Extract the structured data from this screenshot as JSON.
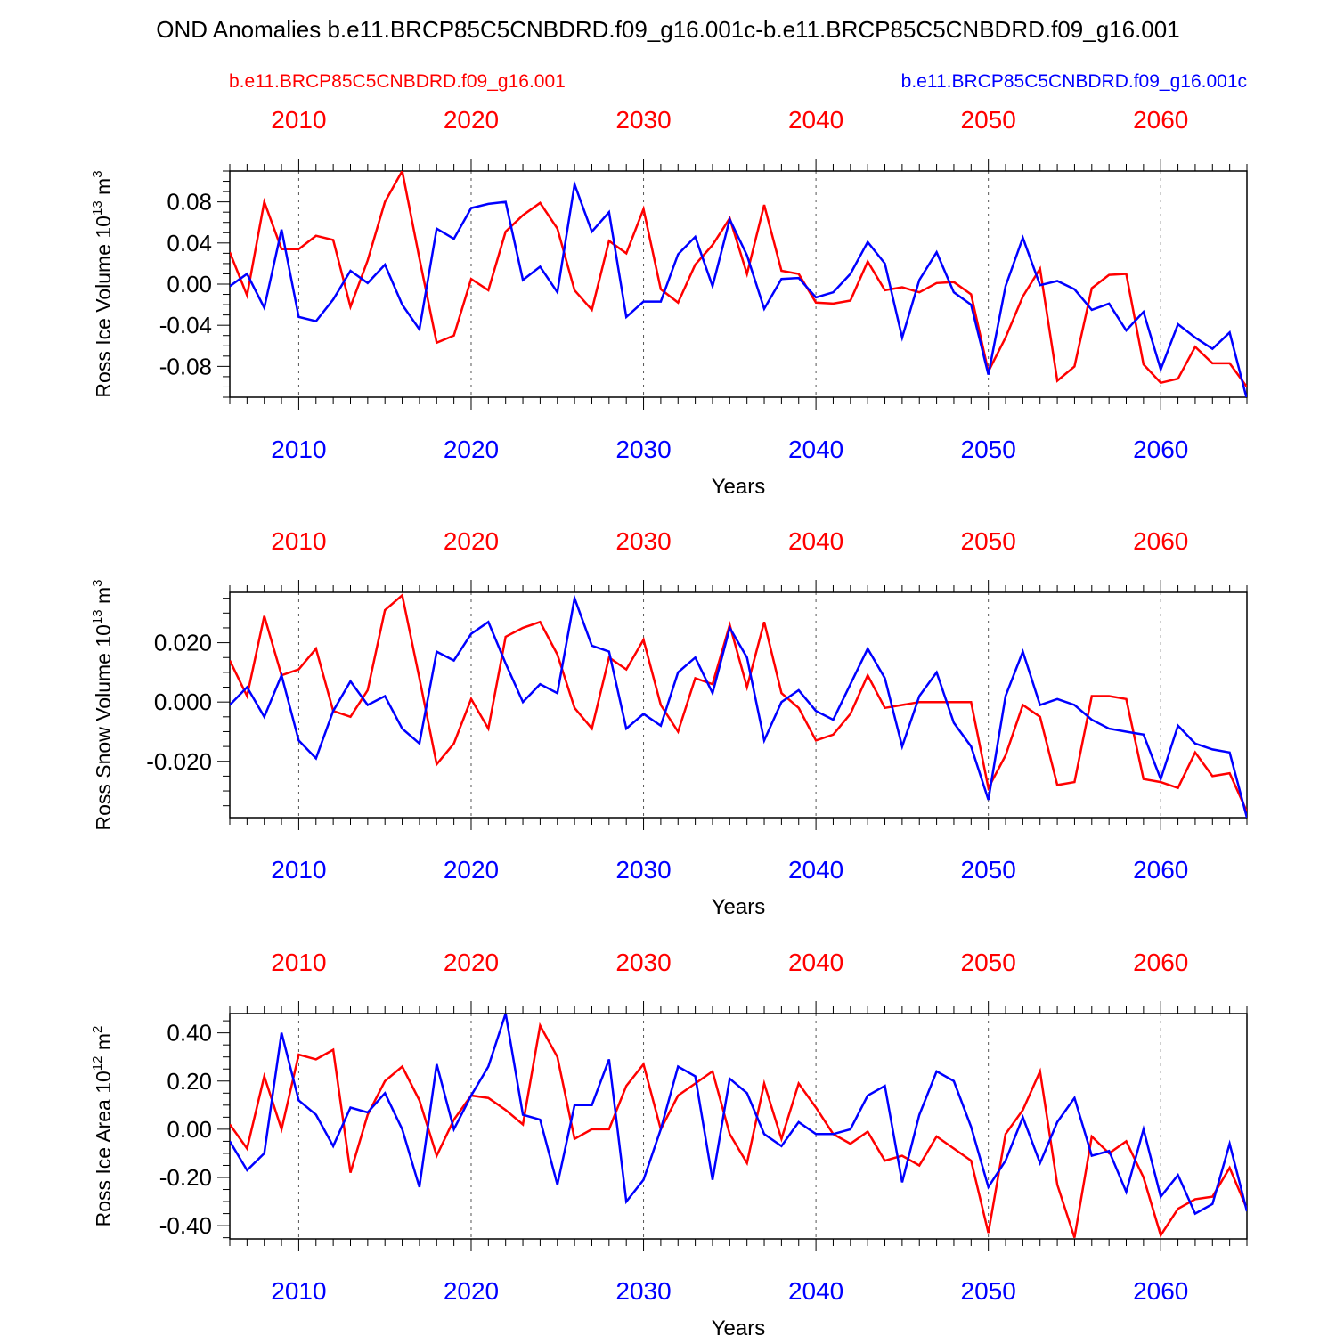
{
  "title": "OND Anomalies b.e11.BRCP85C5CNBDRD.f09_g16.001c-b.e11.BRCP85C5CNBDRD.f09_g16.001",
  "legend": {
    "red_label": "b.e11.BRCP85C5CNBDRD.f09_g16.001",
    "blue_label": "b.e11.BRCP85C5CNBDRD.f09_g16.001c",
    "red_color": "#ff0000",
    "blue_color": "#0000ff"
  },
  "chart_data": [
    {
      "type": "line",
      "ylabel_main": "Ross Ice Volume 10",
      "ylabel_exp": "13",
      "ylabel_unit": " m",
      "ylabel_unit_exp": "3",
      "xlabel": "Years",
      "xlim": [
        2006,
        2065
      ],
      "ylim": [
        -0.11,
        0.11
      ],
      "yticks": [
        -0.08,
        -0.04,
        0.0,
        0.04,
        0.08
      ],
      "ytick_labels": [
        "-0.08",
        "-0.04",
        "0.00",
        "0.04",
        "0.08"
      ],
      "xticks": [
        2010,
        2020,
        2030,
        2040,
        2050,
        2060
      ],
      "xtick_labels": [
        "2010",
        "2020",
        "2030",
        "2040",
        "2050",
        "2060"
      ],
      "series": [
        {
          "name": "b.e11.BRCP85C5CNBDRD.f09_g16.001",
          "color": "#ff0000",
          "x_start": 2006,
          "values": [
            0.031,
            -0.011,
            0.08,
            0.034,
            0.034,
            0.047,
            0.043,
            -0.022,
            0.023,
            0.08,
            0.11,
            0.025,
            -0.057,
            -0.05,
            0.005,
            -0.006,
            0.051,
            0.067,
            0.079,
            0.054,
            -0.006,
            -0.025,
            0.042,
            0.03,
            0.073,
            -0.005,
            -0.018,
            0.019,
            0.038,
            0.064,
            0.01,
            0.077,
            0.013,
            0.01,
            -0.018,
            -0.019,
            -0.016,
            0.022,
            -0.006,
            -0.003,
            -0.008,
            0.001,
            0.002,
            -0.01,
            -0.085,
            -0.052,
            -0.012,
            0.015,
            -0.094,
            -0.08,
            -0.004,
            0.009,
            0.01,
            -0.078,
            -0.096,
            -0.092,
            -0.061,
            -0.077,
            -0.077,
            -0.1
          ]
        },
        {
          "name": "b.e11.BRCP85C5CNBDRD.f09_g16.001c",
          "color": "#0000ff",
          "x_start": 2006,
          "values": [
            -0.002,
            0.01,
            -0.023,
            0.053,
            -0.032,
            -0.036,
            -0.015,
            0.013,
            0.001,
            0.019,
            -0.02,
            -0.044,
            0.054,
            0.044,
            0.074,
            0.078,
            0.08,
            0.004,
            0.017,
            -0.008,
            0.097,
            0.051,
            0.07,
            -0.032,
            -0.017,
            -0.017,
            0.029,
            0.046,
            -0.002,
            0.063,
            0.028,
            -0.024,
            0.005,
            0.006,
            -0.013,
            -0.008,
            0.01,
            0.041,
            0.02,
            -0.052,
            0.004,
            0.031,
            -0.008,
            -0.02,
            -0.088,
            -0.002,
            0.045,
            -0.001,
            0.003,
            -0.005,
            -0.025,
            -0.019,
            -0.045,
            -0.027,
            -0.083,
            -0.039,
            -0.052,
            -0.063,
            -0.047,
            -0.112
          ]
        }
      ]
    },
    {
      "type": "line",
      "ylabel_main": "Ross Snow Volume 10",
      "ylabel_exp": "13",
      "ylabel_unit": " m",
      "ylabel_unit_exp": "3",
      "xlabel": "Years",
      "xlim": [
        2006,
        2065
      ],
      "ylim": [
        -0.039,
        0.037
      ],
      "yticks": [
        -0.02,
        0.0,
        0.02
      ],
      "ytick_labels": [
        "-0.020",
        "0.000",
        "0.020"
      ],
      "xticks": [
        2010,
        2020,
        2030,
        2040,
        2050,
        2060
      ],
      "xtick_labels": [
        "2010",
        "2020",
        "2030",
        "2040",
        "2050",
        "2060"
      ],
      "series": [
        {
          "name": "b.e11.BRCP85C5CNBDRD.f09_g16.001",
          "color": "#ff0000",
          "x_start": 2006,
          "values": [
            0.014,
            0.002,
            0.029,
            0.009,
            0.011,
            0.018,
            -0.003,
            -0.005,
            0.004,
            0.031,
            0.036,
            0.008,
            -0.021,
            -0.014,
            0.001,
            -0.009,
            0.022,
            0.025,
            0.027,
            0.016,
            -0.002,
            -0.009,
            0.015,
            0.011,
            0.021,
            -0.001,
            -0.01,
            0.008,
            0.006,
            0.026,
            0.005,
            0.027,
            0.003,
            -0.002,
            -0.013,
            -0.011,
            -0.004,
            0.009,
            -0.002,
            -0.001,
            0.0,
            0.0,
            0.0,
            0.0,
            -0.029,
            -0.018,
            -0.001,
            -0.005,
            -0.028,
            -0.027,
            0.002,
            0.002,
            0.001,
            -0.026,
            -0.027,
            -0.029,
            -0.017,
            -0.025,
            -0.024,
            -0.037
          ]
        },
        {
          "name": "b.e11.BRCP85C5CNBDRD.f09_g16.001c",
          "color": "#0000ff",
          "x_start": 2006,
          "values": [
            -0.001,
            0.005,
            -0.005,
            0.009,
            -0.013,
            -0.019,
            -0.003,
            0.007,
            -0.001,
            0.002,
            -0.009,
            -0.014,
            0.017,
            0.014,
            0.023,
            0.027,
            0.013,
            0.0,
            0.006,
            0.003,
            0.035,
            0.019,
            0.017,
            -0.009,
            -0.004,
            -0.008,
            0.01,
            0.015,
            0.003,
            0.025,
            0.015,
            -0.013,
            0.0,
            0.004,
            -0.003,
            -0.006,
            0.006,
            0.018,
            0.008,
            -0.015,
            0.002,
            0.01,
            -0.007,
            -0.015,
            -0.033,
            0.002,
            0.017,
            -0.001,
            0.001,
            -0.001,
            -0.006,
            -0.009,
            -0.01,
            -0.011,
            -0.026,
            -0.008,
            -0.014,
            -0.016,
            -0.017,
            -0.039
          ]
        }
      ]
    },
    {
      "type": "line",
      "ylabel_main": "Ross Ice Area 10",
      "ylabel_exp": "12",
      "ylabel_unit": " m",
      "ylabel_unit_exp": "2",
      "xlabel": "Years",
      "xlim": [
        2006,
        2065
      ],
      "ylim": [
        -0.455,
        0.48
      ],
      "yticks": [
        -0.4,
        -0.2,
        0.0,
        0.2,
        0.4
      ],
      "ytick_labels": [
        "-0.40",
        "-0.20",
        "0.00",
        "0.20",
        "0.40"
      ],
      "xticks": [
        2010,
        2020,
        2030,
        2040,
        2050,
        2060
      ],
      "xtick_labels": [
        "2010",
        "2020",
        "2030",
        "2040",
        "2050",
        "2060"
      ],
      "series": [
        {
          "name": "b.e11.BRCP85C5CNBDRD.f09_g16.001",
          "color": "#ff0000",
          "x_start": 2006,
          "values": [
            0.02,
            -0.08,
            0.22,
            0.0,
            0.31,
            0.29,
            0.33,
            -0.18,
            0.06,
            0.2,
            0.26,
            0.12,
            -0.11,
            0.04,
            0.14,
            0.13,
            0.08,
            0.02,
            0.43,
            0.3,
            -0.04,
            0.0,
            0.0,
            0.18,
            0.27,
            0.0,
            0.14,
            0.19,
            0.24,
            -0.02,
            -0.14,
            0.19,
            -0.04,
            0.19,
            0.09,
            -0.02,
            -0.06,
            -0.01,
            -0.13,
            -0.11,
            -0.15,
            -0.03,
            -0.08,
            -0.13,
            -0.43,
            -0.02,
            0.08,
            0.24,
            -0.23,
            -0.45,
            -0.03,
            -0.1,
            -0.05,
            -0.2,
            -0.44,
            -0.33,
            -0.29,
            -0.28,
            -0.16,
            -0.33
          ]
        },
        {
          "name": "b.e11.BRCP85C5CNBDRD.f09_g16.001c",
          "color": "#0000ff",
          "x_start": 2006,
          "values": [
            -0.05,
            -0.17,
            -0.1,
            0.4,
            0.12,
            0.06,
            -0.07,
            0.09,
            0.07,
            0.15,
            0.0,
            -0.24,
            0.27,
            0.0,
            0.14,
            0.26,
            0.48,
            0.06,
            0.04,
            -0.23,
            0.1,
            0.1,
            0.29,
            -0.3,
            -0.21,
            0.0,
            0.26,
            0.22,
            -0.21,
            0.21,
            0.15,
            -0.02,
            -0.07,
            0.03,
            -0.02,
            -0.02,
            0.0,
            0.14,
            0.18,
            -0.22,
            0.06,
            0.24,
            0.2,
            0.01,
            -0.24,
            -0.13,
            0.05,
            -0.14,
            0.03,
            0.13,
            -0.11,
            -0.09,
            -0.26,
            0.0,
            -0.28,
            -0.19,
            -0.35,
            -0.31,
            -0.06,
            -0.34
          ]
        }
      ]
    }
  ]
}
